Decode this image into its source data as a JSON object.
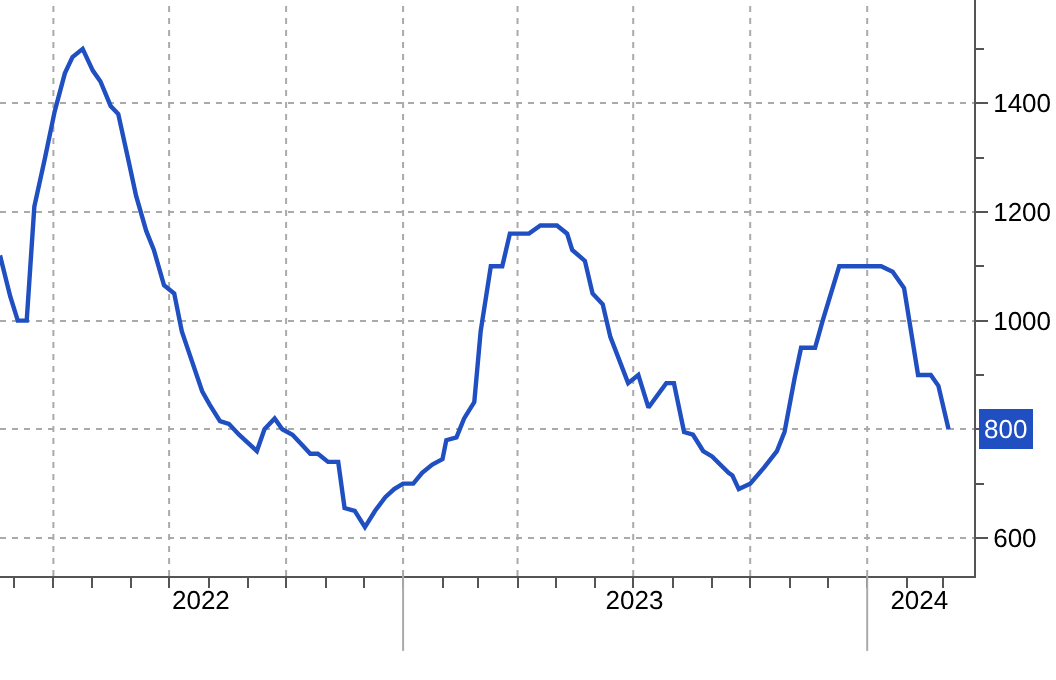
{
  "chart_data": {
    "type": "line",
    "x": [
      "2022-02-18",
      "2022-02-26",
      "2022-03-04",
      "2022-03-11",
      "2022-03-17",
      "2022-03-25",
      "2022-04-02",
      "2022-04-10",
      "2022-04-16",
      "2022-04-24",
      "2022-05-02",
      "2022-05-08",
      "2022-05-16",
      "2022-05-22",
      "2022-05-30",
      "2022-06-05",
      "2022-06-13",
      "2022-06-19",
      "2022-06-27",
      "2022-07-05",
      "2022-07-11",
      "2022-07-19",
      "2022-07-27",
      "2022-08-02",
      "2022-08-10",
      "2022-08-17",
      "2022-08-25",
      "2022-09-08",
      "2022-09-14",
      "2022-09-22",
      "2022-09-28",
      "2022-10-06",
      "2022-10-14",
      "2022-10-20",
      "2022-10-26",
      "2022-11-03",
      "2022-11-11",
      "2022-11-16",
      "2022-11-24",
      "2022-12-02",
      "2022-12-10",
      "2022-12-18",
      "2022-12-25",
      "2023-01-01",
      "2023-01-09",
      "2023-01-16",
      "2023-01-24",
      "2023-02-01",
      "2023-02-04",
      "2023-02-12",
      "2023-02-18",
      "2023-02-26",
      "2023-03-03",
      "2023-03-11",
      "2023-03-20",
      "2023-03-26",
      "2023-04-10",
      "2023-04-19",
      "2023-05-02",
      "2023-05-10",
      "2023-05-14",
      "2023-05-24",
      "2023-05-30",
      "2023-06-07",
      "2023-06-13",
      "2023-06-27",
      "2023-07-05",
      "2023-07-13",
      "2023-07-27",
      "2023-08-02",
      "2023-08-10",
      "2023-08-17",
      "2023-08-25",
      "2023-09-01",
      "2023-09-14",
      "2023-09-17",
      "2023-09-22",
      "2023-10-01",
      "2023-10-12",
      "2023-10-22",
      "2023-10-28",
      "2023-11-05",
      "2023-11-10",
      "2023-11-21",
      "2023-11-27",
      "2023-12-10",
      "2024-01-01",
      "2024-01-12",
      "2024-01-21",
      "2024-01-30",
      "2024-02-10",
      "2024-02-20",
      "2024-02-26",
      "2024-03-05"
    ],
    "series": [
      {
        "color": "#1f4fc1",
        "values": [
          1120,
          1045,
          1000,
          1000,
          1210,
          1295,
          1385,
          1455,
          1485,
          1500,
          1460,
          1440,
          1395,
          1380,
          1295,
          1230,
          1165,
          1130,
          1065,
          1050,
          980,
          925,
          870,
          845,
          815,
          810,
          790,
          760,
          800,
          820,
          800,
          790,
          770,
          755,
          755,
          740,
          740,
          655,
          650,
          620,
          650,
          675,
          690,
          700,
          700,
          720,
          735,
          745,
          780,
          785,
          820,
          850,
          980,
          1100,
          1100,
          1160,
          1160,
          1175,
          1175,
          1160,
          1130,
          1110,
          1050,
          1030,
          970,
          885,
          900,
          840,
          885,
          885,
          795,
          790,
          760,
          750,
          720,
          715,
          690,
          700,
          730,
          760,
          795,
          895,
          950,
          950,
          1000,
          1100,
          1100,
          1100,
          1090,
          1060,
          900,
          900,
          880,
          800
        ]
      }
    ],
    "xlim": [
      "2022-02-18",
      "2024-03-25"
    ],
    "xticks": [
      {
        "value": "2022-07-26",
        "label": "2022"
      },
      {
        "value": "2023-07-02",
        "label": "2023"
      },
      {
        "value": "2024-02-11",
        "label": "2024"
      }
    ],
    "ylim": [
      530,
      1590
    ],
    "yticks": [
      600,
      {
        "value": 800,
        "label": null
      },
      1000,
      1200,
      1400
    ],
    "grid": true,
    "annotations": [
      {
        "text": "800",
        "x": "2024-03-05",
        "y": 800
      }
    ]
  }
}
